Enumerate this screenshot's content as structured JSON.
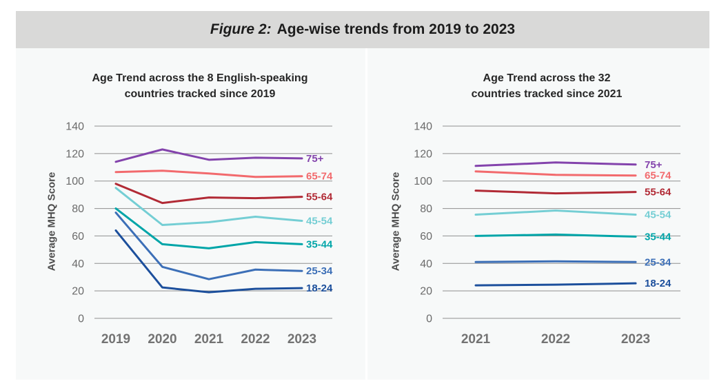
{
  "header": {
    "prefix": "Figure 2:",
    "title": "Age-wise trends from 2019 to 2023"
  },
  "chart_data": [
    {
      "type": "line",
      "title": "Age Trend across the 8 English-speaking\ncountries tracked since 2019",
      "ylabel": "Average MHQ Score",
      "xlabel": "",
      "categories": [
        "2019",
        "2020",
        "2021",
        "2022",
        "2023"
      ],
      "ylim": [
        0,
        140
      ],
      "yticks": [
        0,
        20,
        40,
        60,
        80,
        100,
        120,
        140
      ],
      "grid": true,
      "legend_position": "right-of-line-end",
      "series": [
        {
          "name": "75+",
          "color": "#8343ac",
          "values": [
            114,
            123,
            115.5,
            117,
            116.5
          ]
        },
        {
          "name": "65-74",
          "color": "#f26a6d",
          "values": [
            106.5,
            107.5,
            105.5,
            103,
            103.5
          ]
        },
        {
          "name": "55-64",
          "color": "#b12a35",
          "values": [
            98,
            84,
            88,
            87.5,
            88.5
          ]
        },
        {
          "name": "45-54",
          "color": "#74ced4",
          "values": [
            95,
            68,
            70,
            74,
            71
          ]
        },
        {
          "name": "35-44",
          "color": "#00a5a8",
          "values": [
            80,
            54,
            51,
            55.5,
            54
          ]
        },
        {
          "name": "25-34",
          "color": "#3c6fb7",
          "values": [
            77,
            37.5,
            28.5,
            35.5,
            34.5
          ]
        },
        {
          "name": "18-24",
          "color": "#1c4f9c",
          "values": [
            64,
            22.5,
            19,
            21.5,
            22
          ]
        }
      ]
    },
    {
      "type": "line",
      "title": "Age Trend across the 32\ncountries tracked since 2021",
      "ylabel": "Average MHQ Score",
      "xlabel": "",
      "categories": [
        "2021",
        "2022",
        "2023"
      ],
      "ylim": [
        0,
        140
      ],
      "yticks": [
        0,
        20,
        40,
        60,
        80,
        100,
        120,
        140
      ],
      "grid": true,
      "legend_position": "right-of-line-end",
      "series": [
        {
          "name": "75+",
          "color": "#8343ac",
          "values": [
            111,
            113.5,
            112
          ]
        },
        {
          "name": "65-74",
          "color": "#f26a6d",
          "values": [
            107,
            104.5,
            104
          ]
        },
        {
          "name": "55-64",
          "color": "#b12a35",
          "values": [
            93,
            91,
            92
          ]
        },
        {
          "name": "45-54",
          "color": "#74ced4",
          "values": [
            75.5,
            78.5,
            75.5
          ]
        },
        {
          "name": "35-44",
          "color": "#00a5a8",
          "values": [
            60,
            61,
            59.5
          ]
        },
        {
          "name": "25-34",
          "color": "#3c6fb7",
          "values": [
            41,
            41.5,
            41
          ]
        },
        {
          "name": "18-24",
          "color": "#1c4f9c",
          "values": [
            24,
            24.5,
            25.5
          ]
        }
      ]
    }
  ]
}
